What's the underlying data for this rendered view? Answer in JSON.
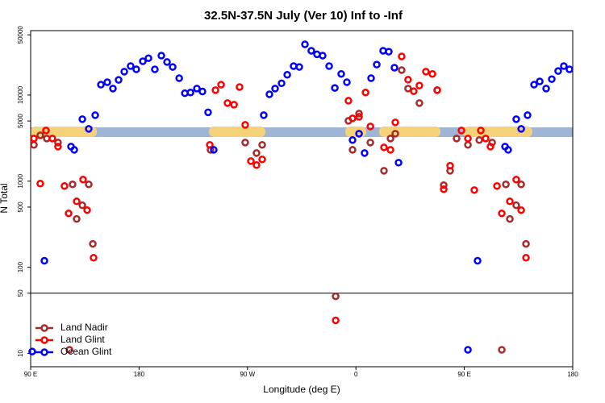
{
  "chart_data": {
    "type": "scatter",
    "title": "32.5N-37.5N July (Ver 10)   Inf to -Inf",
    "x_label": "Longitude (deg E)",
    "y_label": "N Total",
    "log_y": true,
    "legend": "bottom-left",
    "reference_line": 50,
    "xlim": [
      90,
      540
    ],
    "ylim": [
      7,
      56000
    ],
    "xticks": [
      {
        "value": 90,
        "label": "90 E"
      },
      180,
      {
        "value": 270,
        "label": "90 W"
      },
      {
        "value": 360,
        "label": "0"
      },
      {
        "value": 450,
        "label": "90 E"
      },
      {
        "value": 540,
        "label": "180"
      }
    ],
    "yticks": [
      10,
      50,
      100,
      500,
      1000,
      5000,
      10000,
      50000
    ],
    "series": [
      {
        "name": "Land Nadir",
        "color": "#a52a2a",
        "x": [
          92.7,
          98,
          103.4,
          112.7,
          124.8,
          128.2,
          132.9,
          138.2,
          141.6,
          239.3,
          268.1,
          277.5,
          282.2,
          343.2,
          353.8,
          362.6,
          357.2,
          372,
          383.3,
          388.7,
          392.7,
          398,
          403.3,
          412.7,
          427.5,
          432.9,
          438.2,
          443.6,
          453,
          462.4,
          473.1,
          481.1,
          484.5,
          487.8,
          493.1,
          497.2,
          501.2,
          122.2
        ],
        "values": [
          2640,
          3410,
          3130,
          2810,
          918,
          364,
          525,
          918,
          187,
          2310,
          2810,
          2120,
          2640,
          46,
          5020,
          6100,
          2310,
          2810,
          1320,
          3130,
          3560,
          19500,
          11900,
          8070,
          11400,
          898,
          1320,
          3130,
          2640,
          3000,
          2810,
          11,
          918,
          364,
          525,
          918,
          187,
          11
        ]
      },
      {
        "name": "Land Glint",
        "color": "#ff0000",
        "x": [
          92.7,
          98,
          102.7,
          108,
          112.7,
          118.1,
          121.5,
          128.2,
          133.5,
          136.9,
          142.2,
          238.7,
          243.4,
          248.1,
          253.4,
          258.8,
          263.4,
          268.1,
          272.8,
          277.5,
          282.2,
          343.2,
          353.8,
          357.2,
          362.6,
          368,
          372,
          383.3,
          388.7,
          392.7,
          398,
          403.3,
          408,
          412.7,
          418.1,
          423.5,
          427.5,
          432.9,
          438.2,
          447.6,
          453,
          458.3,
          463.7,
          467.7,
          471.7,
          477.1,
          481.1,
          487.8,
          493.1,
          497.2,
          501.2
        ],
        "values": [
          3130,
          937,
          3880,
          3130,
          2520,
          879,
          423,
          583,
          1045,
          461,
          129,
          2640,
          11400,
          13200,
          8070,
          7730,
          12400,
          4510,
          1710,
          1540,
          1790,
          24.2,
          8600,
          5360,
          5590,
          10700,
          4320,
          2470,
          2310,
          4810,
          28100,
          15100,
          11100,
          12900,
          18700,
          17600,
          11400,
          807,
          1510,
          3880,
          3130,
          788,
          3880,
          3130,
          2520,
          879,
          423,
          583,
          1045,
          461,
          129
        ]
      },
      {
        "name": "Ocean Glint",
        "color": "#0000ff",
        "x": [
          91.3,
          101.4,
          126.2,
          123.5,
          132.9,
          138.2,
          143.6,
          148.3,
          153.6,
          158.3,
          163,
          167.7,
          173,
          177.7,
          183.1,
          187.8,
          193.1,
          198.5,
          203.2,
          207.9,
          213.3,
          218,
          222.7,
          228,
          232.6,
          237.3,
          242,
          283.5,
          288.2,
          292.9,
          298.3,
          303,
          308.3,
          313,
          317.7,
          323,
          327.7,
          332.4,
          337.8,
          342.5,
          347.8,
          352.5,
          357.2,
          362.6,
          367.2,
          372.6,
          377.3,
          382.6,
          387.3,
          392,
          395.4,
          453,
          461,
          483.8,
          486.4,
          493.1,
          497.2,
          502.5,
          507.9,
          512.6,
          517.9,
          522.6,
          527.9,
          532.6,
          537.3
        ],
        "values": [
          10.5,
          119,
          2310,
          2520,
          5250,
          4050,
          5840,
          13200,
          14100,
          11900,
          15000,
          18700,
          21700,
          19900,
          24700,
          26800,
          19900,
          28700,
          24200,
          21200,
          15700,
          10500,
          10700,
          11900,
          11000,
          6300,
          2310,
          5840,
          10200,
          11900,
          13700,
          17200,
          21700,
          21200,
          38800,
          32700,
          29700,
          28700,
          21700,
          12100,
          17600,
          14100,
          3000,
          3560,
          2120,
          15700,
          22600,
          32700,
          31900,
          20800,
          1640,
          11,
          119,
          2520,
          2310,
          5250,
          4050,
          5840,
          13200,
          14400,
          11900,
          15300,
          19000,
          21700,
          19900
        ]
      }
    ]
  }
}
